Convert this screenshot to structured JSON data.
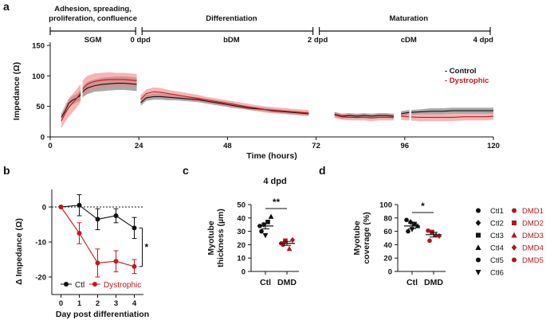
{
  "chart_data": [
    {
      "panel": "a",
      "type": "line",
      "ylabel": "Impedance (Ω)",
      "xlabel": "Time (hours)",
      "xlim": [
        0,
        120
      ],
      "ylim": [
        0,
        150
      ],
      "xticks": [
        0,
        24,
        48,
        72,
        96,
        120
      ],
      "yticks": [
        0,
        50,
        100,
        150
      ],
      "stages": [
        {
          "label": "Adhesion, spreading,",
          "label2": "proliferation, confluence",
          "medium": "SGM",
          "start": 0,
          "end": 24
        },
        {
          "label": "Differentiation",
          "medium": "bDM",
          "start": 24,
          "end": 72
        },
        {
          "label": "Maturation",
          "medium": "cDM",
          "start": 72,
          "end": 120
        }
      ],
      "dpd_markers": [
        {
          "label": "0 dpd",
          "x": 24
        },
        {
          "label": "2 dpd",
          "x": 72
        },
        {
          "label": "4 dpd",
          "x": 120
        }
      ],
      "legend": [
        {
          "name": "- Control",
          "color": "#111111"
        },
        {
          "name": "- Dystrophic",
          "color": "#c0191f"
        }
      ],
      "series": [
        {
          "name": "Control",
          "color": "#111111",
          "band_color": "#8c8c8c",
          "segments": [
            {
              "x": [
                3,
                4,
                5,
                6,
                7,
                8,
                9,
                10,
                11,
                12,
                14,
                16,
                18,
                20,
                22,
                23.5
              ],
              "y": [
                32,
                42,
                55,
                60,
                63,
                67,
                75,
                80,
                82,
                84,
                86,
                87,
                88,
                88,
                87,
                86
              ],
              "err": [
                6,
                6,
                6,
                7,
                7,
                8,
                9,
                10,
                10,
                10,
                11,
                11,
                11,
                11,
                11,
                11
              ]
            },
            {
              "x": [
                24.5,
                26,
                28,
                30,
                32,
                34,
                36,
                38,
                40,
                42,
                44,
                46,
                48,
                50,
                52,
                54,
                56,
                58,
                60,
                62,
                64,
                66,
                68,
                70
              ],
              "y": [
                56,
                64,
                66,
                66,
                65,
                64,
                63,
                62,
                61,
                59,
                57,
                55,
                53,
                51,
                49,
                47,
                46,
                45,
                43,
                42,
                41,
                40,
                39,
                38
              ],
              "err": [
                5,
                5,
                5,
                5,
                5,
                4,
                4,
                4,
                4,
                4,
                4,
                4,
                4,
                4,
                3,
                3,
                3,
                3,
                3,
                3,
                3,
                3,
                3,
                3
              ]
            },
            {
              "x": [
                77,
                79,
                81,
                83,
                85,
                87,
                89,
                91,
                93
              ],
              "y": [
                37,
                34,
                35,
                34,
                35,
                34,
                35,
                35,
                34
              ],
              "err": [
                4,
                4,
                4,
                4,
                4,
                4,
                4,
                4,
                4
              ]
            },
            {
              "x": [
                95,
                97,
                100,
                103,
                106,
                109,
                112,
                115,
                118,
                120
              ],
              "y": [
                38,
                40,
                41,
                42,
                42,
                43,
                43,
                43,
                43,
                43
              ],
              "err": [
                4,
                4,
                4,
                5,
                5,
                5,
                5,
                5,
                5,
                5
              ]
            }
          ]
        },
        {
          "name": "Dystrophic",
          "color": "#c0191f",
          "band_color": "#f08484",
          "segments": [
            {
              "x": [
                3,
                4,
                5,
                6,
                7,
                8,
                9,
                10,
                11,
                12,
                14,
                16,
                18,
                20,
                22,
                23.5
              ],
              "y": [
                26,
                38,
                48,
                55,
                62,
                70,
                80,
                86,
                89,
                91,
                93,
                94,
                94,
                94,
                93,
                92
              ],
              "err": [
                12,
                14,
                15,
                15,
                15,
                15,
                14,
                14,
                13,
                13,
                12,
                12,
                11,
                11,
                11,
                11
              ]
            },
            {
              "x": [
                24.5,
                26,
                28,
                30,
                32,
                34,
                36,
                38,
                40,
                42,
                44,
                46,
                48,
                50,
                52,
                54,
                56,
                58,
                60,
                62,
                64,
                66,
                68,
                70
              ],
              "y": [
                62,
                71,
                74,
                73,
                71,
                69,
                67,
                65,
                63,
                61,
                59,
                57,
                55,
                53,
                51,
                49,
                47,
                45,
                44,
                43,
                42,
                41,
                40,
                39
              ],
              "err": [
                7,
                7,
                7,
                7,
                6,
                6,
                6,
                6,
                6,
                5,
                5,
                5,
                5,
                5,
                5,
                5,
                5,
                5,
                5,
                5,
                5,
                5,
                5,
                5
              ]
            },
            {
              "x": [
                77,
                79,
                81,
                83,
                85,
                87,
                89,
                91,
                93
              ],
              "y": [
                36,
                33,
                32,
                32,
                32,
                31,
                32,
                32,
                32
              ],
              "err": [
                5,
                5,
                5,
                5,
                5,
                5,
                5,
                5,
                5
              ]
            },
            {
              "x": [
                95,
                97,
                100,
                103,
                106,
                109,
                112,
                115,
                118,
                120
              ],
              "y": [
                34,
                33,
                32,
                32,
                32,
                32,
                33,
                33,
                33,
                34
              ],
              "err": [
                6,
                6,
                6,
                6,
                6,
                6,
                6,
                6,
                6,
                6
              ]
            }
          ]
        }
      ]
    },
    {
      "panel": "b",
      "type": "line",
      "ylabel": "Δ Impedance (Ω)",
      "xlabel": "Day post differentiation",
      "xlim": [
        -0.5,
        4.5
      ],
      "ylim": [
        -25,
        5
      ],
      "xticks": [
        0,
        1,
        2,
        3,
        4
      ],
      "yticks": [
        0,
        -10,
        -20
      ],
      "significance": "*",
      "series": [
        {
          "name": "Ctl",
          "color": "#111111",
          "x": [
            0,
            1,
            2,
            3,
            4
          ],
          "y": [
            0,
            0.5,
            -3.5,
            -2.5,
            -6
          ],
          "err": [
            0,
            3,
            3,
            2,
            3
          ]
        },
        {
          "name": "Dystrophic",
          "color": "#c0191f",
          "x": [
            0,
            1,
            2,
            3,
            4
          ],
          "y": [
            0,
            -7.5,
            -16,
            -15.5,
            -17
          ],
          "err": [
            0,
            3,
            4,
            3,
            2
          ]
        }
      ]
    },
    {
      "panel": "c",
      "type": "scatter",
      "title": "4 dpd",
      "ylabel": "Myotube",
      "ylabel2": "thickness (µm)",
      "categories": [
        "Ctl",
        "DMD"
      ],
      "ylim": [
        0,
        50
      ],
      "yticks": [
        0,
        10,
        20,
        30,
        40,
        50
      ],
      "significance": "**",
      "groups": [
        {
          "name": "Ctl",
          "color": "#111111",
          "mean": 34,
          "sem": 2.2,
          "points": [
            {
              "v": 34,
              "shape": "circle"
            },
            {
              "v": 35,
              "shape": "diamond"
            },
            {
              "v": 37,
              "shape": "square"
            },
            {
              "v": 41,
              "shape": "triangle"
            },
            {
              "v": 30,
              "shape": "circle"
            },
            {
              "v": 27,
              "shape": "tri-down"
            }
          ]
        },
        {
          "name": "DMD",
          "color": "#b3161c",
          "mean": 21,
          "sem": 1.5,
          "points": [
            {
              "v": 21,
              "shape": "circle"
            },
            {
              "v": 23,
              "shape": "square"
            },
            {
              "v": 17,
              "shape": "triangle"
            },
            {
              "v": 23.5,
              "shape": "diamond"
            },
            {
              "v": 20,
              "shape": "circle"
            }
          ]
        }
      ]
    },
    {
      "panel": "d",
      "type": "scatter",
      "ylabel": "Myotube",
      "ylabel2": "coverage (%)",
      "categories": [
        "Ctl",
        "DMD"
      ],
      "ylim": [
        0,
        100
      ],
      "yticks": [
        0,
        20,
        40,
        60,
        80,
        100
      ],
      "significance": "*",
      "groups": [
        {
          "name": "Ctl",
          "color": "#111111",
          "mean": 68,
          "sem": 4,
          "points": [
            {
              "v": 77,
              "shape": "circle"
            },
            {
              "v": 74,
              "shape": "diamond"
            },
            {
              "v": 71,
              "shape": "square"
            },
            {
              "v": 68,
              "shape": "triangle"
            },
            {
              "v": 60,
              "shape": "circle"
            },
            {
              "v": 63,
              "shape": "tri-down"
            }
          ]
        },
        {
          "name": "DMD",
          "color": "#b3161c",
          "mean": 55,
          "sem": 3.5,
          "points": [
            {
              "v": 61,
              "shape": "circle"
            },
            {
              "v": 59,
              "shape": "square"
            },
            {
              "v": 55,
              "shape": "triangle"
            },
            {
              "v": 53,
              "shape": "diamond"
            },
            {
              "v": 46,
              "shape": "circle"
            }
          ]
        }
      ]
    }
  ],
  "panel_letters": [
    "a",
    "b",
    "c",
    "d"
  ],
  "legend_b": {
    "ctl": "Ctl",
    "dys": "Dystrophic"
  },
  "shape_legend": {
    "ctl": [
      {
        "label": "Ctl1",
        "shape": "circle"
      },
      {
        "label": "Ctl2",
        "shape": "diamond"
      },
      {
        "label": "Ctl3",
        "shape": "square"
      },
      {
        "label": "Ctl4",
        "shape": "triangle"
      },
      {
        "label": "Ctl5",
        "shape": "circle"
      },
      {
        "label": "Ctl6",
        "shape": "tri-down"
      }
    ],
    "dmd": [
      {
        "label": "DMD1",
        "shape": "circle"
      },
      {
        "label": "DMD2",
        "shape": "square"
      },
      {
        "label": "DMD3",
        "shape": "triangle"
      },
      {
        "label": "DMD4",
        "shape": "diamond"
      },
      {
        "label": "DMD5",
        "shape": "circle"
      }
    ],
    "ctl_color": "#111111",
    "dmd_color": "#b3161c"
  }
}
